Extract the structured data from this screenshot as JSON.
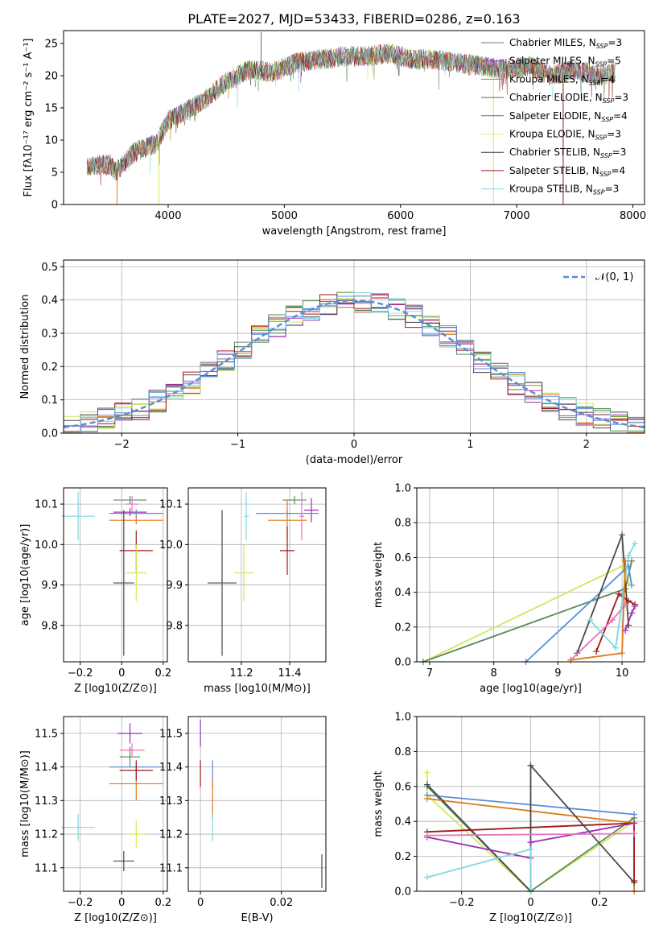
{
  "title": "PLATE=2027, MJD=53433, FIBERID=0286, z=0.163",
  "series_colors": [
    "#5b8a5b",
    "#9b30b0",
    "#e07a1a",
    "#4f8f3f",
    "#a23ab3",
    "#cfe85a",
    "#4a4a4a",
    "#a01818",
    "#7fd8e0"
  ],
  "chart_data": [
    {
      "type": "line",
      "name_id": "spectrum",
      "xlabel": "wavelength [Angstrom, rest frame]",
      "ylabel": "Flux [fλ10⁻¹⁷ erg cm⁻² s⁻¹ A⁻¹]",
      "xlim": [
        3100,
        8100
      ],
      "ylim": [
        0,
        27
      ],
      "xticks": [
        4000,
        5000,
        6000,
        7000,
        8000
      ],
      "yticks": [
        0,
        5,
        10,
        15,
        20,
        25
      ],
      "grid": false,
      "legend_position": "top-right",
      "series": [
        {
          "name": "Chabrier MILES, N_SSP=3",
          "color": "#5b8a5b"
        },
        {
          "name": "Salpeter MILES, N_SSP=5",
          "color": "#9b30b0"
        },
        {
          "name": "Kroupa MILES, N_SSP=4",
          "color": "#b8860b"
        },
        {
          "name": "Chabrier ELODIE, N_SSP=3",
          "color": "#2e7d32"
        },
        {
          "name": "Salpeter ELODIE, N_SSP=4",
          "color": "#a23ab3"
        },
        {
          "name": "Kroupa ELODIE, N_SSP=3",
          "color": "#e8e85a"
        },
        {
          "name": "Chabrier STELIB, N_SSP=3",
          "color": "#333333"
        },
        {
          "name": "Salpeter STELIB, N_SSP=4",
          "color": "#a01818"
        },
        {
          "name": "Kroupa STELIB, N_SSP=3",
          "color": "#7fd8e0"
        }
      ],
      "envelope": {
        "x": [
          3300,
          3500,
          3550,
          3700,
          3900,
          4000,
          4100,
          4300,
          4500,
          4700,
          4900,
          5100,
          5300,
          5500,
          5700,
          5900,
          6100,
          6300,
          6500,
          6700,
          6900,
          7100,
          7300,
          7500,
          7700,
          7850
        ],
        "y": [
          6,
          6.2,
          5,
          8,
          9.5,
          13,
          14,
          16,
          19,
          21,
          20.5,
          22,
          22.5,
          23,
          23,
          23.5,
          22.5,
          22.5,
          22,
          21.5,
          21,
          21.5,
          20,
          21,
          20,
          20.5
        ]
      }
    },
    {
      "type": "line",
      "name_id": "residual-histogram",
      "xlabel": "(data-model)/error",
      "ylabel": "Normed distribution",
      "xlim": [
        -2.5,
        2.5
      ],
      "ylim": [
        0,
        0.52
      ],
      "xticks": [
        -2,
        -1,
        0,
        1,
        2
      ],
      "yticks": [
        0.0,
        0.1,
        0.2,
        0.3,
        0.4,
        0.5
      ],
      "grid": true,
      "legend_position": "top-right",
      "legend": "𝒩(0, 1)",
      "gaussian": {
        "mean": 0,
        "sigma": 1
      }
    },
    {
      "type": "scatter",
      "name_id": "age-vs-Z",
      "xlabel": "Z [log10(Z/Z⊙)]",
      "ylabel": "age  [log10(age/yr)]",
      "xlim": [
        -0.28,
        0.22
      ],
      "ylim": [
        9.71,
        10.14
      ],
      "xticks": [
        -0.2,
        0.0,
        0.2
      ],
      "yticks": [
        9.8,
        9.9,
        10.0,
        10.1
      ],
      "grid": true,
      "points": [
        {
          "x": -0.21,
          "y": 10.07,
          "ex": 0.08,
          "ey": 0.06,
          "color": "#7fd8e0"
        },
        {
          "x": 0.04,
          "y": 10.11,
          "ex": 0.08,
          "ey": 0.01,
          "color": "#5b8a5b"
        },
        {
          "x": 0.04,
          "y": 10.08,
          "ex": 0.08,
          "ey": 0.01,
          "color": "#9b30b0"
        },
        {
          "x": 0.07,
          "y": 10.077,
          "ex": 0.13,
          "ey": 0.01,
          "color": "#5b8dd9"
        },
        {
          "x": 0.07,
          "y": 10.06,
          "ex": 0.13,
          "ey": 0.01,
          "color": "#e07a1a"
        },
        {
          "x": 0.05,
          "y": 10.1,
          "ex": 0.03,
          "ey": 0.02,
          "color": "#e377c2"
        },
        {
          "x": 0.07,
          "y": 9.985,
          "ex": 0.08,
          "ey": 0.05,
          "color": "#a01818"
        },
        {
          "x": 0.07,
          "y": 9.93,
          "ex": 0.05,
          "ey": 0.07,
          "color": "#cfe85a"
        },
        {
          "x": 0.01,
          "y": 9.905,
          "ex": 0.05,
          "ey": 0.18,
          "color": "#4a4a4a"
        }
      ]
    },
    {
      "type": "scatter",
      "name_id": "age-vs-mass",
      "xlabel": "mass [log10(M/M⊙)]",
      "ylabel": "",
      "xlim": [
        10.98,
        11.55
      ],
      "ylim": [
        9.71,
        10.14
      ],
      "xticks": [
        11.2,
        11.4
      ],
      "yticks": [
        9.8,
        9.9,
        10.0,
        10.1
      ],
      "grid": true,
      "points": [
        {
          "x": 11.22,
          "y": 10.07,
          "ex": 0.01,
          "ey": 0.06,
          "color": "#7fd8e0"
        },
        {
          "x": 11.42,
          "y": 10.11,
          "ex": 0.05,
          "ey": 0.01,
          "color": "#5b8a5b"
        },
        {
          "x": 11.49,
          "y": 10.085,
          "ex": 0.03,
          "ey": 0.03,
          "color": "#9b30b0"
        },
        {
          "x": 11.39,
          "y": 10.077,
          "ex": 0.13,
          "ey": 0.01,
          "color": "#5b8dd9"
        },
        {
          "x": 11.39,
          "y": 10.06,
          "ex": 0.08,
          "ey": 0.05,
          "color": "#e07a1a"
        },
        {
          "x": 11.45,
          "y": 10.07,
          "ex": 0.01,
          "ey": 0.06,
          "color": "#e377c2"
        },
        {
          "x": 11.39,
          "y": 9.985,
          "ex": 0.03,
          "ey": 0.06,
          "color": "#a01818"
        },
        {
          "x": 11.21,
          "y": 9.93,
          "ex": 0.04,
          "ey": 0.07,
          "color": "#cfe85a"
        },
        {
          "x": 11.12,
          "y": 9.905,
          "ex": 0.06,
          "ey": 0.18,
          "color": "#4a4a4a"
        }
      ]
    },
    {
      "type": "line",
      "name_id": "weight-vs-age",
      "xlabel": "age  [log10(age/yr)]",
      "ylabel": "mass weight",
      "xlim": [
        6.8,
        10.35
      ],
      "ylim": [
        0,
        1
      ],
      "xticks": [
        7,
        8,
        9,
        10
      ],
      "yticks": [
        0.0,
        0.2,
        0.4,
        0.6,
        0.8,
        1.0
      ],
      "grid": true,
      "series": [
        {
          "color": "#cfe85a",
          "x": [
            6.9,
            10.0,
            10.1
          ],
          "y": [
            0.0,
            0.55,
            0.45
          ]
        },
        {
          "color": "#5b8a5b",
          "x": [
            6.9,
            10.05,
            10.15
          ],
          "y": [
            0.0,
            0.42,
            0.58
          ]
        },
        {
          "color": "#5b8dd9",
          "x": [
            8.5,
            10.1,
            10.15
          ],
          "y": [
            0.0,
            0.55,
            0.44
          ]
        },
        {
          "color": "#4a4a4a",
          "x": [
            9.3,
            10.0,
            10.1
          ],
          "y": [
            0.05,
            0.73,
            0.21
          ]
        },
        {
          "color": "#a01818",
          "x": [
            9.6,
            9.95,
            10.1,
            10.2
          ],
          "y": [
            0.06,
            0.39,
            0.35,
            0.33
          ]
        },
        {
          "color": "#e377c2",
          "x": [
            9.2,
            9.85,
            10.05
          ],
          "y": [
            0.01,
            0.24,
            0.33
          ]
        },
        {
          "color": "#7fd8e0",
          "x": [
            9.5,
            9.9,
            10.1,
            10.2
          ],
          "y": [
            0.24,
            0.08,
            0.61,
            0.68
          ]
        },
        {
          "color": "#e07a1a",
          "x": [
            9.2,
            10.0,
            10.05
          ],
          "y": [
            0.01,
            0.05,
            0.58
          ]
        },
        {
          "color": "#9b30b0",
          "x": [
            10.05,
            10.15,
            10.2
          ],
          "y": [
            0.18,
            0.28,
            0.32
          ]
        }
      ]
    },
    {
      "type": "scatter",
      "name_id": "mass-vs-Z",
      "xlabel": "Z [log10(Z/Z⊙)]",
      "ylabel": "mass [log10(M/M⊙)]",
      "xlim": [
        -0.28,
        0.22
      ],
      "ylim": [
        11.03,
        11.55
      ],
      "xticks": [
        -0.2,
        0.0,
        0.2
      ],
      "yticks": [
        11.1,
        11.2,
        11.3,
        11.4,
        11.5
      ],
      "grid": true,
      "points": [
        {
          "x": -0.21,
          "y": 11.22,
          "ex": 0.08,
          "ey": 0.04,
          "color": "#7fd8e0"
        },
        {
          "x": 0.04,
          "y": 11.43,
          "ex": 0.05,
          "ey": 0.03,
          "color": "#5b8a5b"
        },
        {
          "x": 0.04,
          "y": 11.5,
          "ex": 0.06,
          "ey": 0.03,
          "color": "#9b30b0"
        },
        {
          "x": 0.07,
          "y": 11.4,
          "ex": 0.13,
          "ey": 0.01,
          "color": "#5b8dd9"
        },
        {
          "x": 0.07,
          "y": 11.35,
          "ex": 0.13,
          "ey": 0.05,
          "color": "#e07a1a"
        },
        {
          "x": 0.05,
          "y": 11.45,
          "ex": 0.06,
          "ey": 0.02,
          "color": "#e377c2"
        },
        {
          "x": 0.07,
          "y": 11.39,
          "ex": 0.08,
          "ey": 0.03,
          "color": "#a01818"
        },
        {
          "x": 0.07,
          "y": 11.2,
          "ex": 0.05,
          "ey": 0.04,
          "color": "#cfe85a"
        },
        {
          "x": 0.01,
          "y": 11.12,
          "ex": 0.05,
          "ey": 0.03,
          "color": "#4a4a4a"
        }
      ]
    },
    {
      "type": "scatter",
      "name_id": "mass-vs-EBV",
      "xlabel": "E(B-V)",
      "ylabel": "",
      "xlim": [
        -0.003,
        0.031
      ],
      "ylim": [
        11.03,
        11.55
      ],
      "xticks": [
        0.0,
        0.02
      ],
      "yticks": [
        11.1,
        11.2,
        11.3,
        11.4,
        11.5
      ],
      "grid": true,
      "points": [
        {
          "x": 0.0,
          "y": 11.5,
          "ex": 0.0,
          "ey": 0.04,
          "color": "#9b30b0"
        },
        {
          "x": 0.0,
          "y": 11.38,
          "ex": 0.0,
          "ey": 0.04,
          "color": "#a01818"
        },
        {
          "x": 0.003,
          "y": 11.38,
          "ex": 0.0,
          "ey": 0.04,
          "color": "#5b8dd9"
        },
        {
          "x": 0.003,
          "y": 11.3,
          "ex": 0.0,
          "ey": 0.06,
          "color": "#e07a1a"
        },
        {
          "x": 0.003,
          "y": 11.22,
          "ex": 0.0,
          "ey": 0.04,
          "color": "#7fd8e0"
        },
        {
          "x": 0.03,
          "y": 11.09,
          "ex": 0.0,
          "ey": 0.05,
          "color": "#4a4a4a"
        }
      ]
    },
    {
      "type": "line",
      "name_id": "weight-vs-Z",
      "xlabel": "Z [log10(Z/Z⊙)]",
      "ylabel": "mass weight",
      "xlim": [
        -0.33,
        0.33
      ],
      "ylim": [
        0,
        1
      ],
      "xticks": [
        -0.2,
        0.0,
        0.2
      ],
      "yticks": [
        0.0,
        0.2,
        0.4,
        0.6,
        0.8,
        1.0
      ],
      "grid": true,
      "series": [
        {
          "color": "#cfe85a",
          "x": [
            -0.3,
            -0.3,
            0.0,
            0.3
          ],
          "y": [
            0.68,
            0.55,
            0.0,
            0.4
          ]
        },
        {
          "color": "#5b8a5b",
          "x": [
            -0.3,
            0.0,
            0.3
          ],
          "y": [
            0.6,
            0.0,
            0.42
          ]
        },
        {
          "color": "#5b8dd9",
          "x": [
            -0.3,
            0.3
          ],
          "y": [
            0.55,
            0.44
          ]
        },
        {
          "color": "#e07a1a",
          "x": [
            -0.3,
            0.3,
            0.3
          ],
          "y": [
            0.53,
            0.39,
            0.0
          ]
        },
        {
          "color": "#4a4a4a",
          "x": [
            -0.3,
            0.0,
            0.0,
            0.3
          ],
          "y": [
            0.61,
            0.0,
            0.72,
            0.05
          ]
        },
        {
          "color": "#a01818",
          "x": [
            -0.3,
            0.3,
            0.3
          ],
          "y": [
            0.34,
            0.39,
            0.06
          ]
        },
        {
          "color": "#9b30b0",
          "x": [
            -0.3,
            0.0,
            0.0,
            0.3
          ],
          "y": [
            0.31,
            0.19,
            0.28,
            0.39
          ]
        },
        {
          "color": "#e377c2",
          "x": [
            -0.3,
            0.3
          ],
          "y": [
            0.32,
            0.33
          ]
        },
        {
          "color": "#7fd8e0",
          "x": [
            -0.3,
            0.0,
            0.0
          ],
          "y": [
            0.08,
            0.24,
            0.0
          ]
        }
      ]
    }
  ]
}
